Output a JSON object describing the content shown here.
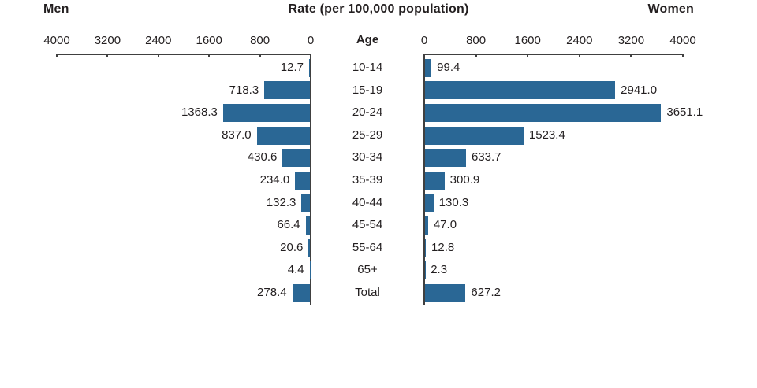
{
  "header": {
    "men_label": "Men",
    "title": "Rate (per 100,000 population)",
    "women_label": "Women",
    "age_label": "Age"
  },
  "chart_data": {
    "type": "bar",
    "subtype": "population-pyramid",
    "title": "Rate (per 100,000 population)",
    "xlabel_center": "Age",
    "legend_position": "top",
    "grid": false,
    "bar_color": "#2a6795",
    "categories": [
      "10-14",
      "15-19",
      "20-24",
      "25-29",
      "30-34",
      "35-39",
      "40-44",
      "45-54",
      "55-64",
      "65+",
      "Total"
    ],
    "series": [
      {
        "name": "Men",
        "side": "left",
        "values": [
          12.7,
          718.3,
          1368.3,
          837.0,
          430.6,
          234.0,
          132.3,
          66.4,
          20.6,
          4.4,
          278.4
        ],
        "labels": [
          "12.7",
          "718.3",
          "1368.3",
          "837.0",
          "430.6",
          "234.0",
          "132.3",
          "66.4",
          "20.6",
          "4.4",
          "278.4"
        ]
      },
      {
        "name": "Women",
        "side": "right",
        "values": [
          99.4,
          2941.0,
          3651.1,
          1523.4,
          633.7,
          300.9,
          130.3,
          47.0,
          12.8,
          2.3,
          627.2
        ],
        "labels": [
          "99.4",
          "2941.0",
          "3651.1",
          "1523.4",
          "633.7",
          "300.9",
          "130.3",
          "47.0",
          "12.8",
          "2.3",
          "627.2"
        ]
      }
    ],
    "axis": {
      "min": 0,
      "max": 4000,
      "ticks": [
        0,
        800,
        1600,
        2400,
        3200,
        4000
      ],
      "left_axis_direction": "reversed",
      "right_axis_direction": "normal"
    }
  }
}
